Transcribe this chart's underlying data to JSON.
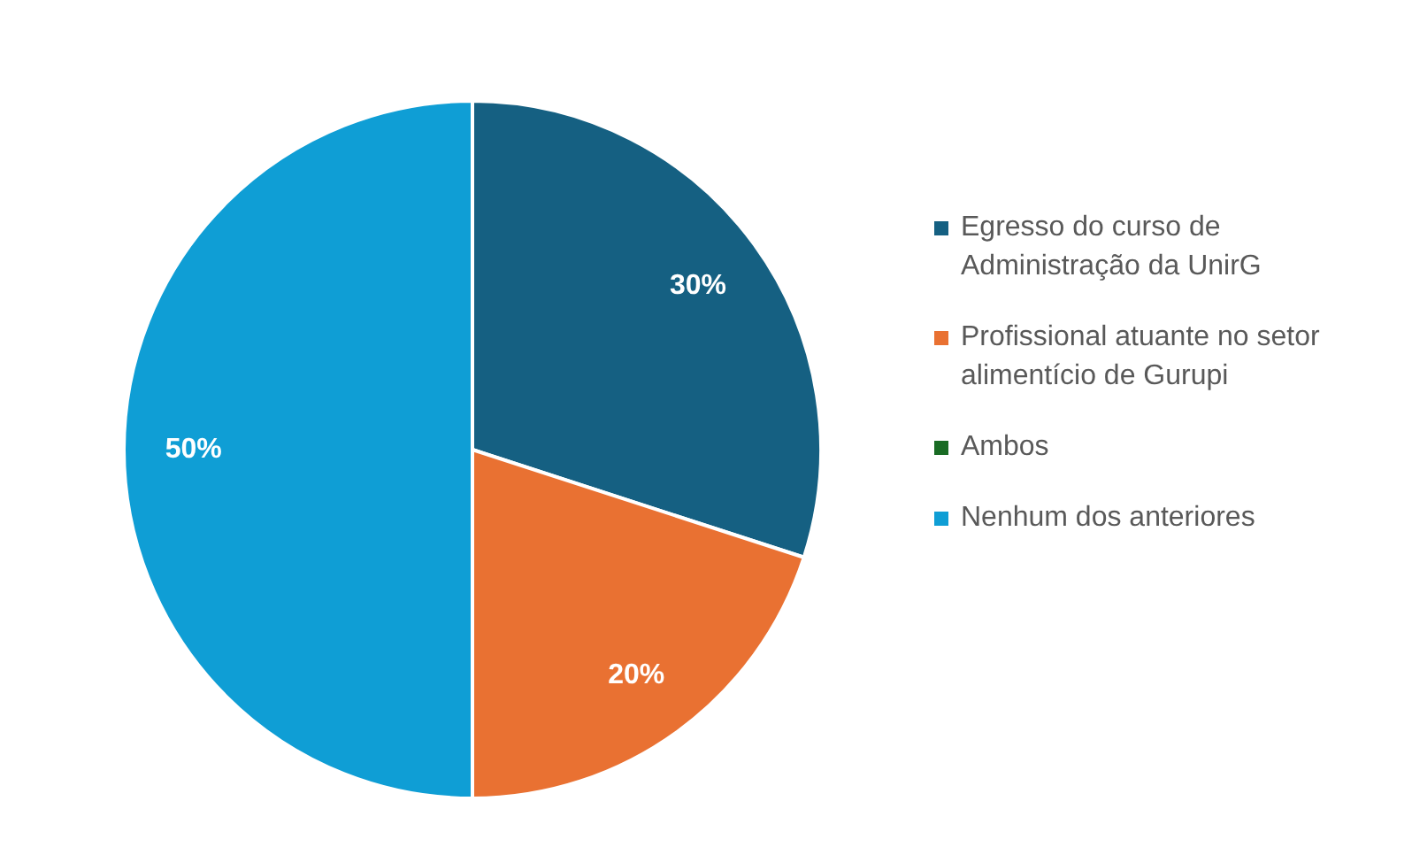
{
  "chart_data": {
    "type": "pie",
    "categories": [
      "Egresso do curso de Administração da UnirG",
      "Profissional atuante no setor alimentício de Gurupi",
      "Ambos",
      "Nenhum dos anteriores"
    ],
    "values": [
      30,
      20,
      0,
      50
    ],
    "colors": [
      "#156082",
      "#e97132",
      "#196b24",
      "#0f9ed5"
    ],
    "value_labels": [
      "30%",
      "20%",
      null,
      "50%"
    ],
    "legend": "right"
  }
}
